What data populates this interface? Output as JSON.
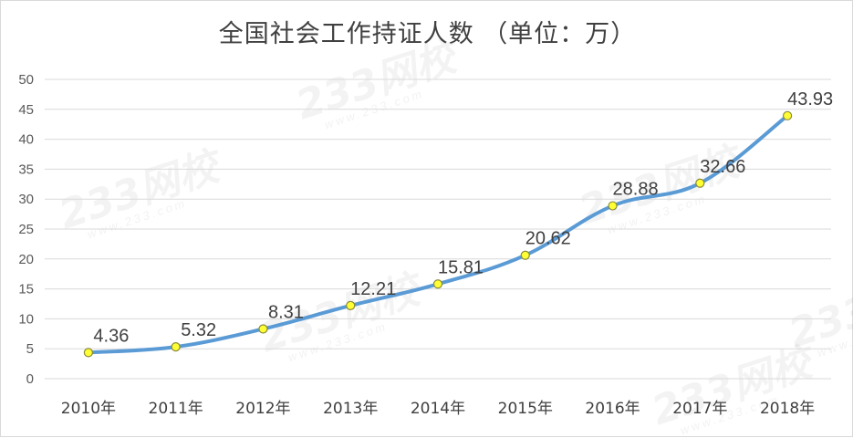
{
  "watermark": {
    "main": "233网校",
    "sub": "www.233.com"
  },
  "chart_data": {
    "type": "line",
    "title": "全国社会工作持证人数 （单位：万）",
    "categories": [
      "2010年",
      "2011年",
      "2012年",
      "2013年",
      "2014年",
      "2015年",
      "2016年",
      "2017年",
      "2018年"
    ],
    "series": [
      {
        "values": [
          4.36,
          5.32,
          8.31,
          12.21,
          15.81,
          20.62,
          28.88,
          32.66,
          43.93
        ]
      }
    ],
    "data_labels": [
      "4.36",
      "5.32",
      "8.31",
      "12.21",
      "15.81",
      "20.62",
      "28.88",
      "32.66",
      "43.93"
    ],
    "y_ticks": [
      "0",
      "5",
      "10",
      "15",
      "20",
      "25",
      "30",
      "35",
      "40",
      "45",
      "50"
    ],
    "ylim": [
      0,
      50
    ],
    "grid": true,
    "legend": "none",
    "colors": {
      "line": "#5b9bd5",
      "marker_fill": "#ffff33",
      "marker_stroke": "#8a8a3a",
      "grid": "#d9d9d9"
    }
  }
}
